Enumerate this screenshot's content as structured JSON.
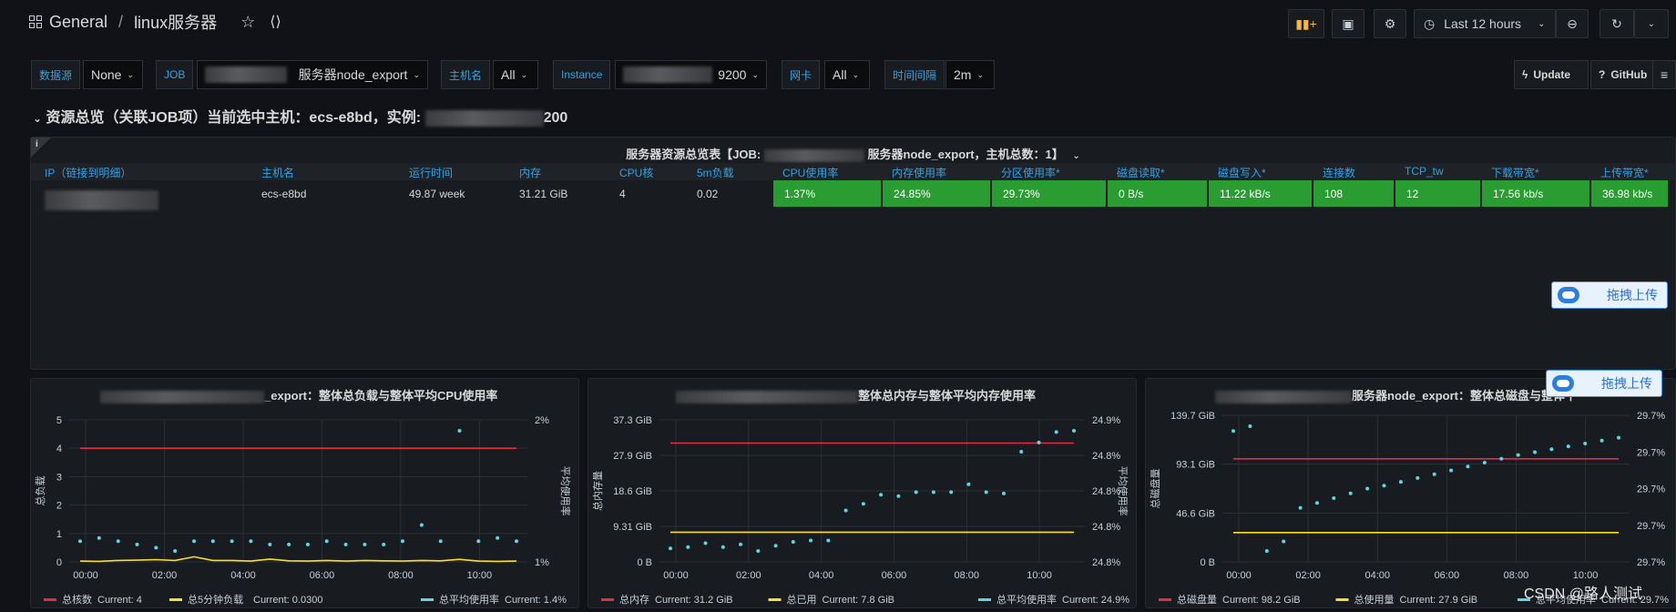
{
  "header": {
    "home": "General",
    "sep": "/",
    "title": "linux服务器",
    "time_range": "Last 12 hours"
  },
  "vars": [
    {
      "label": "数据源",
      "value": "None"
    },
    {
      "label": "JOB",
      "value": "服务器node_export"
    },
    {
      "label": "主机名",
      "value": "All"
    },
    {
      "label": "Instance",
      "value": "9200"
    },
    {
      "label": "网卡",
      "value": "All"
    },
    {
      "label": "时间间隔",
      "value": "2m"
    }
  ],
  "links": {
    "update": "Update",
    "github": "GitHub"
  },
  "row": {
    "title": "资源总览（关联JOB项）当前选中主机：ecs-e8bd，实例:",
    "suffix": "200"
  },
  "table_panel": {
    "title": "服务器资源总览表【JOB:",
    "title2": "服务器node_export，主机总数：1】",
    "headers": [
      "IP（链接到明细）",
      "主机名",
      "运行时间",
      "内存",
      "CPU核",
      "5m负载",
      "CPU使用率",
      "内存使用率",
      "分区使用率*",
      "磁盘读取*",
      "磁盘写入*",
      "连接数",
      "TCP_tw",
      "下载带宽*",
      "上传带宽*"
    ],
    "row": [
      "",
      "ecs-e8bd",
      "49.87 week",
      "31.21 GiB",
      "4",
      "0.02",
      "1.37%",
      "24.85%",
      "29.73%",
      "0 B/s",
      "11.22 kB/s",
      "108",
      "12",
      "17.56 kb/s",
      "36.98 kb/s"
    ]
  },
  "drag_label": "拖拽上传",
  "charts": [
    {
      "title": "_export：整体总负载与整体平均CPU使用率",
      "ylabel": "总负载",
      "y2label": "平均使用率",
      "yticks": [
        "5",
        "4",
        "3",
        "2",
        "1",
        "0"
      ],
      "y2ticks": [
        "2%",
        "1%"
      ],
      "xticks": [
        "00:00",
        "02:00",
        "04:00",
        "06:00",
        "08:00",
        "10:00"
      ],
      "legend": [
        {
          "name": "总核数",
          "current": "Current: 4",
          "color": "#e02f44"
        },
        {
          "name": "总5分钟负载",
          "current": "Current: 0.0300",
          "color": "#fade2a"
        },
        {
          "name": "总平均使用率",
          "current": "Current: 1.4%",
          "color": "#5ad8e6"
        }
      ]
    },
    {
      "title": "整体总内存与整体平均内存使用率",
      "ylabel": "总内存量",
      "y2label": "平均使用率",
      "yticks": [
        "37.3 GiB",
        "27.9 GiB",
        "18.6 GiB",
        "9.31 GiB",
        "0 B"
      ],
      "y2ticks": [
        "24.9%",
        "24.8%",
        "24.8%",
        "24.8%",
        "24.8%"
      ],
      "xticks": [
        "00:00",
        "02:00",
        "04:00",
        "06:00",
        "08:00",
        "10:00"
      ],
      "legend": [
        {
          "name": "总内存",
          "current": "Current: 31.2 GiB",
          "color": "#e02f44"
        },
        {
          "name": "总已用",
          "current": "Current: 7.8 GiB",
          "color": "#fade2a"
        },
        {
          "name": "总平均使用率",
          "current": "Current: 24.9%",
          "color": "#5ad8e6"
        }
      ]
    },
    {
      "title": "服务器node_export：整体总磁盘与整体平",
      "ylabel": "总磁盘量",
      "y2label": "",
      "yticks": [
        "139.7 GiB",
        "93.1 GiB",
        "46.6 GiB",
        "0 B"
      ],
      "y2ticks": [
        "29.7%",
        "29.7%",
        "29.7%",
        "29.7%",
        "29.7%"
      ],
      "xticks": [
        "00:00",
        "02:00",
        "04:00",
        "06:00",
        "08:00",
        "10:00"
      ],
      "legend": [
        {
          "name": "总磁盘量",
          "current": "Current: 98.2 GiB",
          "color": "#e02f44"
        },
        {
          "name": "总使用量",
          "current": "Current: 27.9 GiB",
          "color": "#fade2a"
        },
        {
          "name": "总平均使用率",
          "current": "Current: 29.7%",
          "color": "#5ad8e6"
        }
      ]
    }
  ],
  "watermark": "CSDN @路人测试",
  "chart_data": [
    {
      "type": "line",
      "title": "_export：整体总负载与整体平均CPU使用率",
      "ylim": [
        0,
        5
      ],
      "series": [
        {
          "name": "总核数",
          "axis": "left",
          "values": [
            4,
            4,
            4,
            4,
            4,
            4,
            4,
            4,
            4,
            4,
            4,
            4,
            4,
            4,
            4,
            4,
            4,
            4,
            4,
            4,
            4,
            4,
            4,
            4
          ]
        },
        {
          "name": "总5分钟负载",
          "axis": "left",
          "values": [
            0.03,
            0.02,
            0.05,
            0.06,
            0.08,
            0.05,
            0.18,
            0.05,
            0.05,
            0.03,
            0.1,
            0.04,
            0.03,
            0.05,
            0.03,
            0.05,
            0.04,
            0.03,
            0.05,
            0.04,
            0.09,
            0.03,
            0.02,
            0.03
          ]
        },
        {
          "name": "总平均使用率",
          "axis": "right",
          "values": [
            1.36,
            1.37,
            1.36,
            1.35,
            1.34,
            1.33,
            1.36,
            1.36,
            1.36,
            1.36,
            1.35,
            1.35,
            1.35,
            1.36,
            1.35,
            1.35,
            1.35,
            1.36,
            1.41,
            1.36,
            1.7,
            1.36,
            1.37,
            1.36
          ]
        }
      ]
    },
    {
      "type": "line",
      "title": "整体总内存与整体平均内存使用率",
      "ylim": [
        0,
        37.3
      ],
      "series": [
        {
          "name": "总内存",
          "values": [
            31.2,
            31.2,
            31.2,
            31.2,
            31.2,
            31.2,
            31.2,
            31.2,
            31.2,
            31.2,
            31.2,
            31.2,
            31.2,
            31.2,
            31.2,
            31.2,
            31.2,
            31.2,
            31.2,
            31.2,
            31.2,
            31.2,
            31.2,
            31.2
          ]
        },
        {
          "name": "总已用",
          "values": [
            7.8,
            7.8,
            7.8,
            7.8,
            7.8,
            7.8,
            7.8,
            7.8,
            7.8,
            7.8,
            7.8,
            7.8,
            7.8,
            7.8,
            7.8,
            7.8,
            7.8,
            7.8,
            7.8,
            7.8,
            7.8,
            7.8,
            7.8,
            7.8
          ]
        },
        {
          "name": "总平均使用率",
          "values": [
            24.781,
            24.782,
            24.785,
            24.782,
            24.784,
            24.779,
            24.783,
            24.786,
            24.787,
            24.787,
            24.81,
            24.815,
            24.822,
            24.821,
            24.824,
            24.824,
            24.824,
            24.83,
            24.824,
            24.823,
            24.855,
            24.862,
            24.87,
            24.871
          ]
        }
      ]
    },
    {
      "type": "line",
      "title": "服务器node_export：整体总磁盘与整体平",
      "ylim": [
        0,
        139.7
      ],
      "series": [
        {
          "name": "总磁盘量",
          "values": [
            98.2,
            98.2,
            98.2,
            98.2,
            98.2,
            98.2,
            98.2,
            98.2,
            98.2,
            98.2,
            98.2,
            98.2,
            98.2,
            98.2,
            98.2,
            98.2,
            98.2,
            98.2,
            98.2,
            98.2,
            98.2,
            98.2,
            98.2,
            98.2
          ]
        },
        {
          "name": "总使用量",
          "values": [
            27.9,
            27.9,
            27.9,
            27.9,
            27.9,
            27.9,
            27.9,
            27.9,
            27.9,
            27.9,
            27.9,
            27.9,
            27.9,
            27.9,
            27.9,
            27.9,
            27.9,
            27.9,
            27.9,
            27.9,
            27.9,
            27.9,
            27.9,
            27.9
          ]
        },
        {
          "name": "总平均使用率",
          "values": [
            29.7355,
            29.736,
            29.723,
            29.724,
            29.7275,
            29.728,
            29.7285,
            29.729,
            29.7295,
            29.7298,
            29.7302,
            29.7306,
            29.731,
            29.7314,
            29.7318,
            29.7322,
            29.7326,
            29.733,
            29.7333,
            29.7336,
            29.7339,
            29.7342,
            29.7345,
            29.7348
          ]
        }
      ]
    }
  ]
}
